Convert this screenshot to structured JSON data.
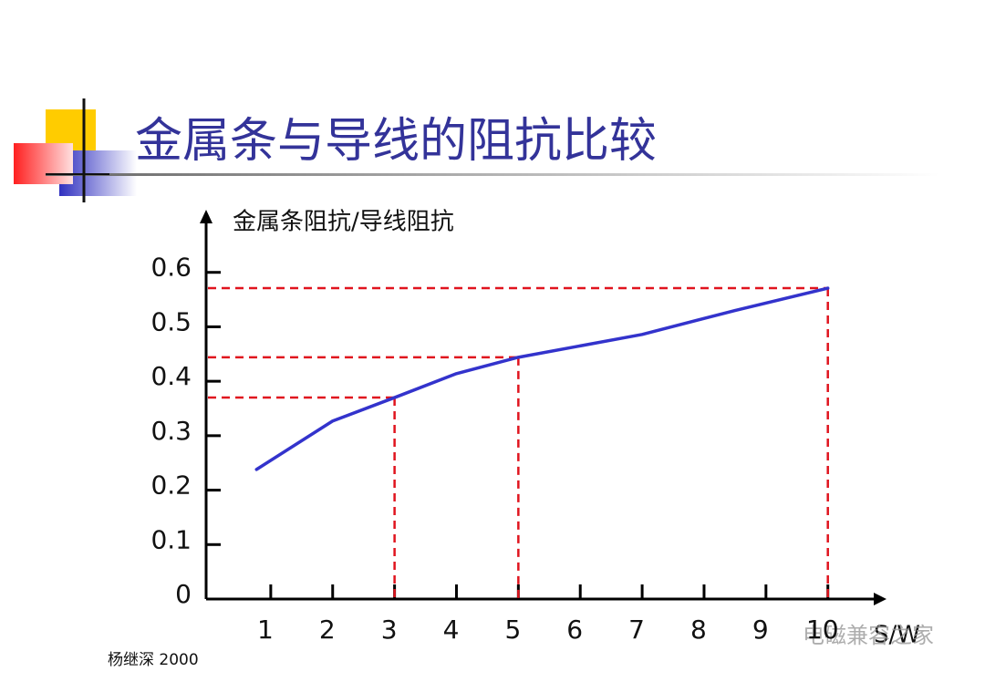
{
  "slide_title": "金属条与导线的阻抗比较",
  "chart_data": {
    "type": "line",
    "y_label": "金属条阻抗/导线阻抗",
    "x_label": "S/W",
    "x": [
      0.77,
      2,
      3,
      4,
      5,
      7,
      8.5,
      10
    ],
    "series": [
      {
        "color": "#3333cc",
        "values": [
          0.238,
          0.327,
          0.37,
          0.414,
          0.444,
          0.486,
          0.53,
          0.571
        ]
      }
    ],
    "markers": {
      "color": "#e0141e",
      "x": [
        3,
        5,
        10
      ],
      "y": [
        0.37,
        0.444,
        0.571
      ]
    },
    "xlim": [
      0,
      10.8
    ],
    "xticks": [
      1,
      2,
      3,
      4,
      5,
      6,
      7,
      8,
      9,
      10
    ],
    "ylim": [
      0,
      0.7
    ],
    "yticks": [
      0,
      0.1,
      0.2,
      0.3,
      0.4,
      0.5,
      0.6
    ]
  },
  "footer": "杨继深   2000",
  "watermark": "电磁兼容之家"
}
